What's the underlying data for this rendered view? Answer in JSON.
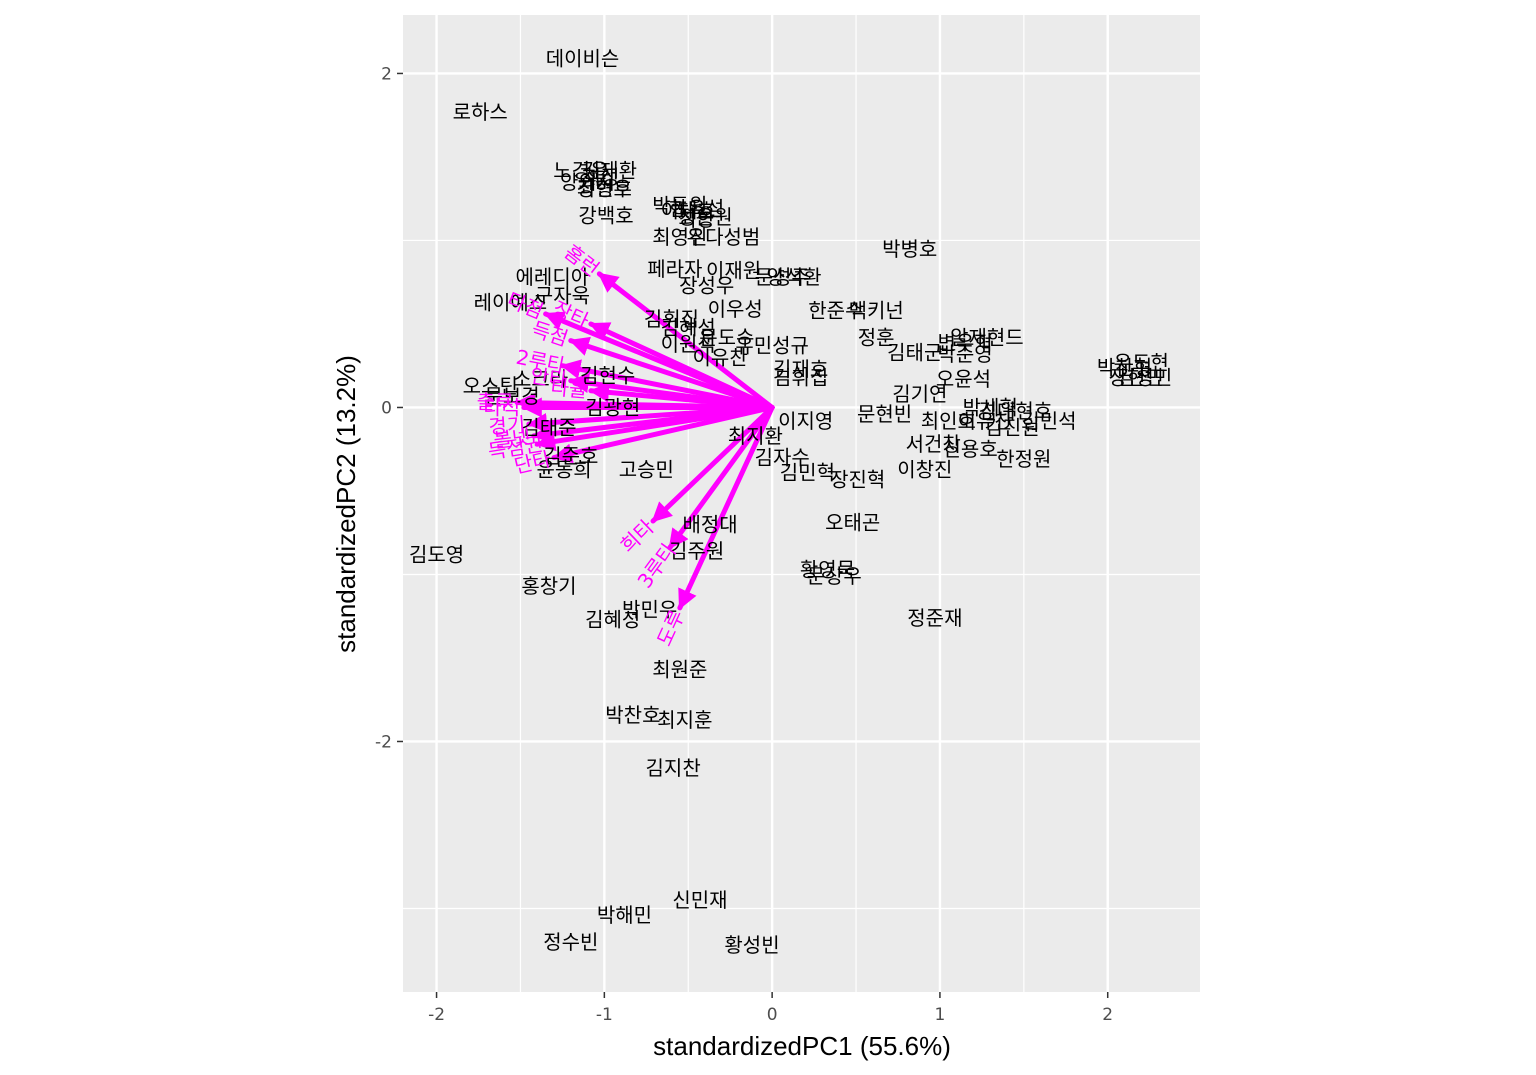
{
  "chart_data": {
    "type": "scatter",
    "subtype": "pca-biplot",
    "title": "",
    "xlabel": "standardizedPC1 (55.6%)",
    "ylabel": "standardizedPC2 (13.2%)",
    "xlim": [
      -2.2,
      2.55
    ],
    "ylim": [
      -3.5,
      2.35
    ],
    "x_ticks": [
      -2,
      -1,
      0,
      1,
      2
    ],
    "y_ticks": [
      -2,
      0,
      2
    ],
    "x_tick_labels": [
      "-2",
      "-1",
      "0",
      "1",
      "2"
    ],
    "y_tick_labels": [
      "-2",
      "0",
      "2"
    ],
    "grid": true,
    "panel_background": "#ebebeb",
    "grid_color": "#ffffff",
    "arrow_color": "#ff00ff",
    "label_color": "#000000",
    "points": [
      {
        "label": "데이비슨",
        "x": -1.13,
        "y": 2.09
      },
      {
        "label": "로하스",
        "x": -1.74,
        "y": 1.77
      },
      {
        "label": "노경은",
        "x": -1.14,
        "y": 1.42
      },
      {
        "label": "김재환",
        "x": -0.97,
        "y": 1.42
      },
      {
        "label": "최정",
        "x": -1.02,
        "y": 1.38
      },
      {
        "label": "양의지",
        "x": -1.1,
        "y": 1.35
      },
      {
        "label": "최형우",
        "x": -1.0,
        "y": 1.31
      },
      {
        "label": "강민호",
        "x": -1.0,
        "y": 1.31
      },
      {
        "label": "강백호",
        "x": -0.99,
        "y": 1.15
      },
      {
        "label": "박동원",
        "x": -0.55,
        "y": 1.21
      },
      {
        "label": "한유섬",
        "x": -0.45,
        "y": 1.19
      },
      {
        "label": "이대호",
        "x": -0.5,
        "y": 1.18
      },
      {
        "label": "정은원",
        "x": -0.4,
        "y": 1.14
      },
      {
        "label": "최항",
        "x": -0.45,
        "y": 1.13
      },
      {
        "label": "최영진",
        "x": -0.55,
        "y": 1.02
      },
      {
        "label": "우다성범",
        "x": -0.29,
        "y": 1.02
      },
      {
        "label": "박병호",
        "x": 0.82,
        "y": 0.95
      },
      {
        "label": "페라자",
        "x": -0.58,
        "y": 0.83
      },
      {
        "label": "이재원",
        "x": -0.23,
        "y": 0.82
      },
      {
        "label": "에레디아",
        "x": -1.31,
        "y": 0.78
      },
      {
        "label": "문성주",
        "x": 0.06,
        "y": 0.78
      },
      {
        "label": "양석환",
        "x": 0.13,
        "y": 0.78
      },
      {
        "label": "장성우",
        "x": -0.39,
        "y": 0.73
      },
      {
        "label": "구자욱",
        "x": -1.25,
        "y": 0.67
      },
      {
        "label": "레이예스",
        "x": -1.56,
        "y": 0.63
      },
      {
        "label": "이우성",
        "x": -0.22,
        "y": 0.59
      },
      {
        "label": "한준수",
        "x": 0.38,
        "y": 0.58
      },
      {
        "label": "맥키넌",
        "x": 0.62,
        "y": 0.58
      },
      {
        "label": "김휘집",
        "x": -0.6,
        "y": 0.53
      },
      {
        "label": "김혜성",
        "x": -0.5,
        "y": 0.48
      },
      {
        "label": "문도수",
        "x": -0.27,
        "y": 0.42
      },
      {
        "label": "정훈",
        "x": 0.62,
        "y": 0.42
      },
      {
        "label": "이원석",
        "x": -0.5,
        "y": 0.38
      },
      {
        "label": "유민성규",
        "x": 0.0,
        "y": 0.37
      },
      {
        "label": "김태군",
        "x": 0.85,
        "y": 0.33
      },
      {
        "label": "변우혁",
        "x": 1.15,
        "y": 0.39
      },
      {
        "label": "알재현드",
        "x": 1.28,
        "y": 0.42
      },
      {
        "label": "박준영",
        "x": 1.15,
        "y": 0.32
      },
      {
        "label": "이유찬",
        "x": -0.31,
        "y": 0.3
      },
      {
        "label": "김재호",
        "x": 0.17,
        "y": 0.23
      },
      {
        "label": "김휘집",
        "x": 0.17,
        "y": 0.18
      },
      {
        "label": "오스틴",
        "x": -1.68,
        "y": 0.13
      },
      {
        "label": "소크라",
        "x": -1.38,
        "y": 0.17
      },
      {
        "label": "김현수",
        "x": -0.98,
        "y": 0.19
      },
      {
        "label": "오윤석",
        "x": 1.14,
        "y": 0.17
      },
      {
        "label": "김기연",
        "x": 0.88,
        "y": 0.08
      },
      {
        "label": "유도현",
        "x": 2.2,
        "y": 0.27
      },
      {
        "label": "박찬형",
        "x": 2.1,
        "y": 0.24
      },
      {
        "label": "장현민",
        "x": 2.17,
        "y": 0.18
      },
      {
        "label": "김성민",
        "x": 2.22,
        "y": 0.18
      },
      {
        "label": "문보경",
        "x": -1.55,
        "y": 0.07
      },
      {
        "label": "김광현",
        "x": -0.95,
        "y": -0.0
      },
      {
        "label": "박세혁",
        "x": 1.3,
        "y": 0.0
      },
      {
        "label": "김대현호",
        "x": 1.45,
        "y": -0.02
      },
      {
        "label": "김민석",
        "x": 1.65,
        "y": -0.08
      },
      {
        "label": "이지영",
        "x": 0.2,
        "y": -0.08
      },
      {
        "label": "문현빈",
        "x": 0.67,
        "y": -0.04
      },
      {
        "label": "최인호",
        "x": 1.05,
        "y": -0.08
      },
      {
        "label": "이유찬",
        "x": 1.27,
        "y": -0.08
      },
      {
        "label": "김진원",
        "x": 1.43,
        "y": -0.12
      },
      {
        "label": "최지환",
        "x": -0.1,
        "y": -0.17
      },
      {
        "label": "김태준",
        "x": -1.33,
        "y": -0.12
      },
      {
        "label": "서건창",
        "x": 0.96,
        "y": -0.22
      },
      {
        "label": "김자수",
        "x": 0.06,
        "y": -0.3
      },
      {
        "label": "신용호",
        "x": 1.18,
        "y": -0.25
      },
      {
        "label": "한정원",
        "x": 1.5,
        "y": -0.31
      },
      {
        "label": "김준호",
        "x": -1.2,
        "y": -0.29
      },
      {
        "label": "윤동희",
        "x": -1.24,
        "y": -0.37
      },
      {
        "label": "고승민",
        "x": -0.75,
        "y": -0.37
      },
      {
        "label": "김민혁",
        "x": 0.21,
        "y": -0.39
      },
      {
        "label": "장진혁",
        "x": 0.51,
        "y": -0.43
      },
      {
        "label": "이창진",
        "x": 0.91,
        "y": -0.37
      },
      {
        "label": "배정대",
        "x": -0.37,
        "y": -0.7
      },
      {
        "label": "오태곤",
        "x": 0.48,
        "y": -0.69
      },
      {
        "label": "김도영",
        "x": -2.0,
        "y": -0.88
      },
      {
        "label": "김주원",
        "x": -0.45,
        "y": -0.86
      },
      {
        "label": "황영묵",
        "x": 0.33,
        "y": -0.97
      },
      {
        "label": "문상우",
        "x": 0.37,
        "y": -1.01
      },
      {
        "label": "홍창기",
        "x": -1.33,
        "y": -1.07
      },
      {
        "label": "박민우",
        "x": -0.73,
        "y": -1.21
      },
      {
        "label": "김혜성",
        "x": -0.95,
        "y": -1.27
      },
      {
        "label": "정준재",
        "x": 0.97,
        "y": -1.26
      },
      {
        "label": "최원준",
        "x": -0.55,
        "y": -1.57
      },
      {
        "label": "박찬호",
        "x": -0.83,
        "y": -1.84
      },
      {
        "label": "최지훈",
        "x": -0.52,
        "y": -1.87
      },
      {
        "label": "김지찬",
        "x": -0.59,
        "y": -2.16
      },
      {
        "label": "신민재",
        "x": -0.43,
        "y": -2.95
      },
      {
        "label": "박해민",
        "x": -0.88,
        "y": -3.04
      },
      {
        "label": "정수빈",
        "x": -1.2,
        "y": -3.2
      },
      {
        "label": "황성빈",
        "x": -0.12,
        "y": -3.22
      }
    ],
    "loadings": [
      {
        "label": "홈런",
        "x": -1.03,
        "y": 0.8
      },
      {
        "label": "타점",
        "x": -1.35,
        "y": 0.56
      },
      {
        "label": "장타",
        "x": -1.08,
        "y": 0.5
      },
      {
        "label": "득점",
        "x": -1.2,
        "y": 0.4
      },
      {
        "label": "2루타",
        "x": -1.25,
        "y": 0.25
      },
      {
        "label": "안타",
        "x": -1.2,
        "y": 0.16
      },
      {
        "label": "타율",
        "x": -1.08,
        "y": 0.1
      },
      {
        "label": "출루",
        "x": -1.52,
        "y": 0.03
      },
      {
        "label": "타석",
        "x": -1.48,
        "y": 0.0
      },
      {
        "label": "경기",
        "x": -1.45,
        "y": -0.1
      },
      {
        "label": "볼넷",
        "x": -1.42,
        "y": -0.17
      },
      {
        "label": "득점권",
        "x": -1.4,
        "y": -0.22
      },
      {
        "label": "단타",
        "x": -1.3,
        "y": -0.3
      },
      {
        "label": "희타",
        "x": -0.71,
        "y": -0.68
      },
      {
        "label": "3루타",
        "x": -0.61,
        "y": -0.84
      },
      {
        "label": "도루",
        "x": -0.55,
        "y": -1.2
      }
    ]
  }
}
